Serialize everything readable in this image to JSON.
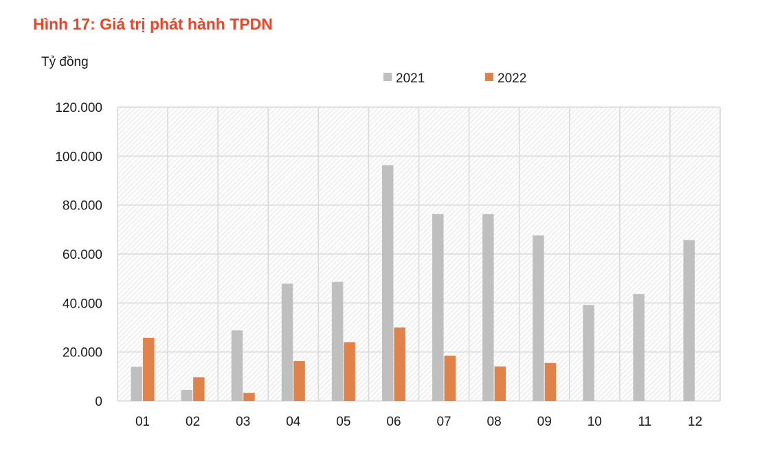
{
  "title": "Hình 17: Giá trị phát hành TPDN",
  "unit_label": "Tỷ đồng",
  "colors": {
    "title": "#e8462a",
    "series_2021": "#bfbfbf",
    "series_2022": "#e0834a",
    "grid": "#d9d9d9"
  },
  "chart_data": {
    "type": "bar",
    "title": "Hình 17: Giá trị phát hành TPDN",
    "ylabel": "Tỷ đồng",
    "xlabel": "",
    "categories": [
      "01",
      "02",
      "03",
      "04",
      "05",
      "06",
      "07",
      "08",
      "09",
      "10",
      "11",
      "12"
    ],
    "series": [
      {
        "name": "2021",
        "values": [
          14000,
          4500,
          28800,
          47900,
          48600,
          96300,
          76300,
          76300,
          67600,
          39200,
          43700,
          65700
        ]
      },
      {
        "name": "2022",
        "values": [
          25800,
          9700,
          3300,
          16300,
          24000,
          30000,
          18500,
          14100,
          15500,
          null,
          null,
          null
        ]
      }
    ],
    "ylim": [
      0,
      120000
    ],
    "yticks": [
      0,
      20000,
      40000,
      60000,
      80000,
      100000,
      120000
    ],
    "ytick_labels": [
      "0",
      "20.000",
      "40.000",
      "60.000",
      "80.000",
      "100.000",
      "120.000"
    ],
    "grid": true,
    "legend": "top-center"
  }
}
